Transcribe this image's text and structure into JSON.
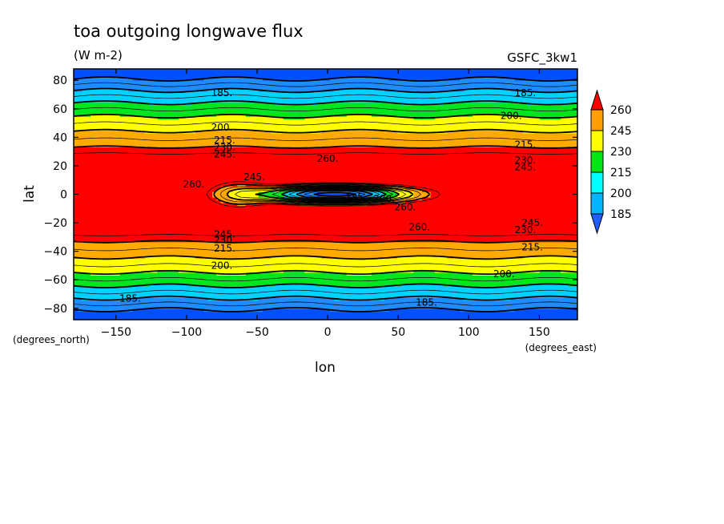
{
  "chart_data": {
    "type": "heatmap",
    "title": "toa outgoing longwave flux",
    "units": "(W m-2)",
    "source_label": "GSFC_3kw1",
    "xlabel": "lon",
    "ylabel": "lat",
    "x_units_label": "(degrees_east)",
    "y_units_label": "(degrees_north)",
    "xlim": [
      -180,
      177
    ],
    "ylim": [
      -88,
      88
    ],
    "x_ticks": [
      -150,
      -100,
      -50,
      0,
      50,
      100,
      150
    ],
    "x_tick_labels": [
      "−150",
      "−100",
      "−50",
      "0",
      "50",
      "100",
      "150"
    ],
    "y_ticks": [
      -80,
      -60,
      -40,
      -20,
      0,
      20,
      40,
      60,
      80
    ],
    "y_tick_labels": [
      "−80",
      "−60",
      "−40",
      "−20",
      "0",
      "20",
      "40",
      "60",
      "80"
    ],
    "levels": [
      185,
      200,
      215,
      230,
      245,
      260
    ],
    "colorbar": {
      "labels": [
        "185",
        "200",
        "215",
        "230",
        "245",
        "260"
      ],
      "colors": [
        "#1e5fff",
        "#00b4ff",
        "#00ffff",
        "#00e614",
        "#ffff00",
        "#ffa000",
        "#ff0000"
      ]
    },
    "colors": {
      "below_185": "#0050ff",
      "185_200": "#1e8cff",
      "200_215": "#00d2ff",
      "215_230": "#00e61e",
      "230_245": "#ffff00",
      "245_260": "#ffaa00",
      "above_260": "#ff0000"
    },
    "contour_labels": [
      {
        "text": "185.",
        "lon": -75,
        "lat": 71
      },
      {
        "text": "185.",
        "lon": 140,
        "lat": 71
      },
      {
        "text": "200.",
        "lon": 130,
        "lat": 55
      },
      {
        "text": "200.",
        "lon": -75,
        "lat": 47
      },
      {
        "text": "215.",
        "lon": -73,
        "lat": 38
      },
      {
        "text": "215.",
        "lon": 140,
        "lat": 35
      },
      {
        "text": "230.",
        "lon": -73,
        "lat": 33
      },
      {
        "text": "230.",
        "lon": 140,
        "lat": 24
      },
      {
        "text": "245.",
        "lon": -73,
        "lat": 28
      },
      {
        "text": "245.",
        "lon": 140,
        "lat": 19
      },
      {
        "text": "260.",
        "lon": 0,
        "lat": 25
      },
      {
        "text": "245.",
        "lon": -52,
        "lat": 12
      },
      {
        "text": "260.",
        "lon": -95,
        "lat": 7
      },
      {
        "text": "185.",
        "lon": 20,
        "lat": -2
      },
      {
        "text": "200.",
        "lon": 40,
        "lat": -3
      },
      {
        "text": "260.",
        "lon": 55,
        "lat": -9
      },
      {
        "text": "260.",
        "lon": 65,
        "lat": -23
      },
      {
        "text": "245.",
        "lon": 145,
        "lat": -20
      },
      {
        "text": "230.",
        "lon": 140,
        "lat": -25
      },
      {
        "text": "215.",
        "lon": 145,
        "lat": -37
      },
      {
        "text": "245.",
        "lon": -73,
        "lat": -28
      },
      {
        "text": "230.",
        "lon": -73,
        "lat": -32
      },
      {
        "text": "215.",
        "lon": -73,
        "lat": -38
      },
      {
        "text": "200.",
        "lon": -75,
        "lat": -50
      },
      {
        "text": "200.",
        "lon": 125,
        "lat": -56
      },
      {
        "text": "185.",
        "lon": -140,
        "lat": -73
      },
      {
        "text": "185.",
        "lon": 70,
        "lat": -76
      }
    ]
  }
}
